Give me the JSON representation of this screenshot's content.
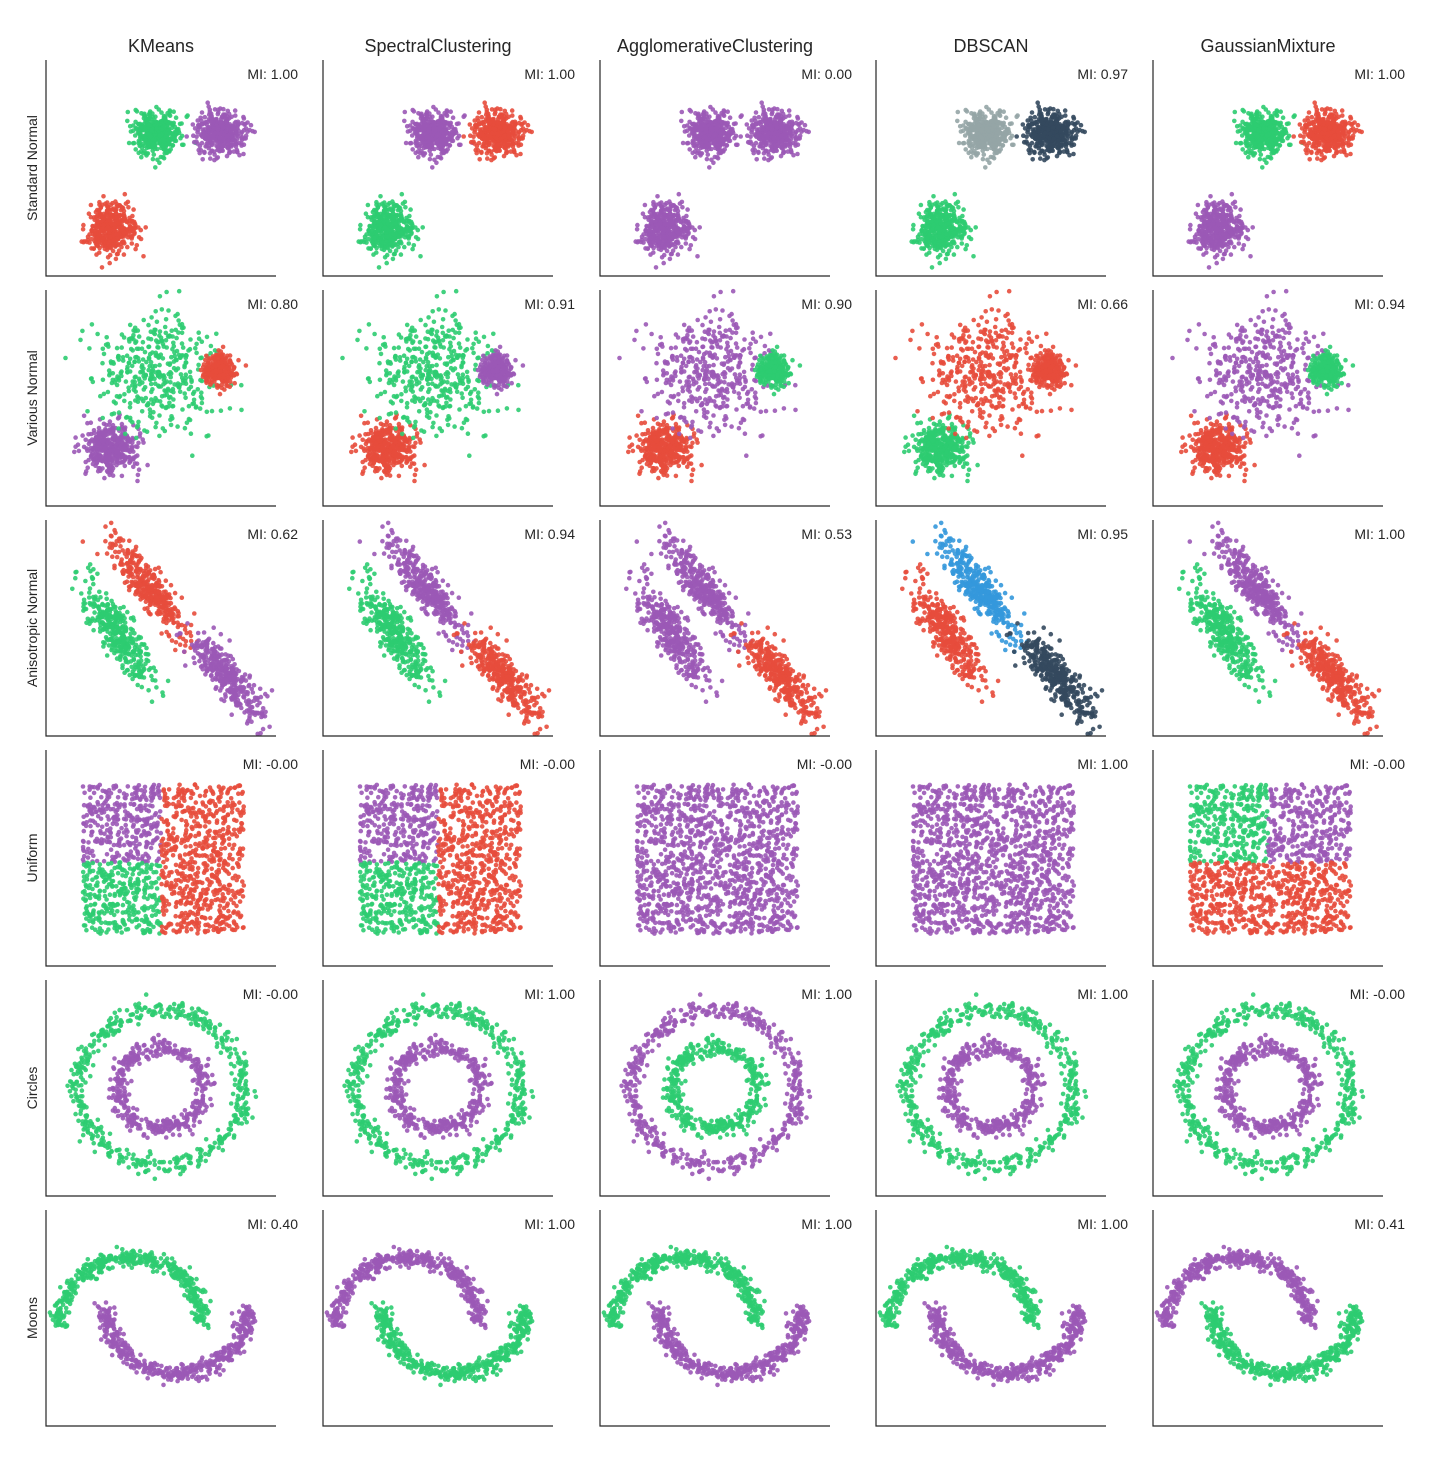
{
  "colors": {
    "purple": "#9b59b6",
    "red": "#e74c3c",
    "green": "#2ecc71",
    "gray": "#95a5a6",
    "navy": "#34495e",
    "blue": "#3498db"
  },
  "chart_data": {
    "type": "scatter",
    "grid": false,
    "columns": [
      "KMeans",
      "SpectralClustering",
      "AgglomerativeClustering",
      "DBSCAN",
      "GaussianMixture"
    ],
    "rows": [
      {
        "label": "Standard Normal",
        "dataset": "blobs",
        "clusters": [
          {
            "id": "A",
            "shape": "blob",
            "center": [
              0.28,
              0.22
            ],
            "spread": 0.055,
            "count": 420
          },
          {
            "id": "B",
            "shape": "blob",
            "center": [
              0.48,
              0.66
            ],
            "spread": 0.05,
            "count": 420
          },
          {
            "id": "C",
            "shape": "blob",
            "center": [
              0.76,
              0.66
            ],
            "spread": 0.05,
            "count": 420
          }
        ],
        "panels": [
          {
            "mi": "MI: 1.00",
            "colors": {
              "A": "red",
              "B": "green",
              "C": "purple"
            }
          },
          {
            "mi": "MI: 1.00",
            "colors": {
              "A": "green",
              "B": "purple",
              "C": "red"
            }
          },
          {
            "mi": "MI: 0.00",
            "colors": {
              "A": "purple",
              "B": "purple",
              "C": "purple"
            }
          },
          {
            "mi": "MI: 0.97",
            "colors": {
              "A": "green",
              "B": "gray",
              "C": "navy"
            }
          },
          {
            "mi": "MI: 1.00",
            "colors": {
              "A": "purple",
              "B": "green",
              "C": "red"
            }
          }
        ]
      },
      {
        "label": "Various Normal",
        "dataset": "varied",
        "clusters": [
          {
            "id": "A",
            "shape": "blob",
            "center": [
              0.28,
              0.27
            ],
            "spread": 0.055,
            "count": 420
          },
          {
            "id": "B",
            "shape": "blob",
            "center": [
              0.48,
              0.62
            ],
            "spread": 0.13,
            "count": 420
          },
          {
            "id": "C",
            "shape": "blob",
            "center": [
              0.75,
              0.63
            ],
            "spread": 0.035,
            "count": 300
          }
        ],
        "panels": [
          {
            "mi": "MI: 0.80",
            "colors": {
              "A": "purple",
              "B": "green",
              "C": "red"
            }
          },
          {
            "mi": "MI: 0.91",
            "colors": {
              "A": "red",
              "B": "green",
              "C": "purple"
            }
          },
          {
            "mi": "MI: 0.90",
            "colors": {
              "A": "red",
              "B": "purple",
              "C": "green"
            }
          },
          {
            "mi": "MI: 0.66",
            "colors": {
              "A": "green",
              "B": "red",
              "C": "red"
            }
          },
          {
            "mi": "MI: 0.94",
            "colors": {
              "A": "red",
              "B": "purple",
              "C": "green"
            }
          }
        ]
      },
      {
        "label": "Anisotropic Normal",
        "dataset": "aniso",
        "clusters": [
          {
            "id": "A",
            "shape": "bar",
            "from": [
              0.16,
              0.74
            ],
            "to": [
              0.47,
              0.2
            ],
            "width": 0.035,
            "count": 380
          },
          {
            "id": "B",
            "shape": "bar",
            "from": [
              0.27,
              0.94
            ],
            "to": [
              0.62,
              0.44
            ],
            "width": 0.035,
            "count": 380
          },
          {
            "id": "C",
            "shape": "bar",
            "from": [
              0.62,
              0.5
            ],
            "to": [
              0.95,
              0.06
            ],
            "width": 0.035,
            "count": 380
          }
        ],
        "panels": [
          {
            "mi": "MI: 0.62",
            "colors": {
              "A": "green",
              "B": "red",
              "C": "purple"
            }
          },
          {
            "mi": "MI: 0.94",
            "colors": {
              "A": "green",
              "B": "purple",
              "C": "red"
            }
          },
          {
            "mi": "MI: 0.53",
            "colors": {
              "A": "purple",
              "B": "purple",
              "C": "red"
            }
          },
          {
            "mi": "MI: 0.95",
            "colors": {
              "A": "red",
              "B": "blue",
              "C": "navy"
            }
          },
          {
            "mi": "MI: 1.00",
            "colors": {
              "A": "green",
              "B": "purple",
              "C": "red"
            }
          }
        ]
      },
      {
        "label": "Uniform",
        "dataset": "uniform",
        "clusters": [
          {
            "id": "TL",
            "shape": "rect",
            "x": [
              0.16,
              0.5
            ],
            "y": [
              0.48,
              0.84
            ],
            "count": 330
          },
          {
            "id": "TR",
            "shape": "rect",
            "x": [
              0.5,
              0.86
            ],
            "y": [
              0.48,
              0.84
            ],
            "count": 330
          },
          {
            "id": "BL",
            "shape": "rect",
            "x": [
              0.16,
              0.5
            ],
            "y": [
              0.15,
              0.48
            ],
            "count": 330
          },
          {
            "id": "BR",
            "shape": "rect",
            "x": [
              0.5,
              0.86
            ],
            "y": [
              0.15,
              0.48
            ],
            "count": 330
          }
        ],
        "panels": [
          {
            "mi": "MI: -0.00",
            "colors": {
              "TL": "purple",
              "TR": "red",
              "BL": "green",
              "BR": "red"
            }
          },
          {
            "mi": "MI: -0.00",
            "colors": {
              "TL": "purple",
              "TR": "red",
              "BL": "green",
              "BR": "red"
            }
          },
          {
            "mi": "MI: -0.00",
            "colors": {
              "TL": "purple",
              "TR": "purple",
              "BL": "purple",
              "BR": "purple"
            }
          },
          {
            "mi": "MI: 1.00",
            "colors": {
              "TL": "purple",
              "TR": "purple",
              "BL": "purple",
              "BR": "purple"
            }
          },
          {
            "mi": "MI: -0.00",
            "colors": {
              "TL": "green",
              "TR": "purple",
              "BL": "red",
              "BR": "red"
            }
          }
        ]
      },
      {
        "label": "Circles",
        "dataset": "circles",
        "clusters": [
          {
            "id": "outer",
            "shape": "ring",
            "center": [
              0.5,
              0.5
            ],
            "radius": 0.36,
            "noise": 0.022,
            "count": 520
          },
          {
            "id": "inner",
            "shape": "ring",
            "center": [
              0.5,
              0.5
            ],
            "radius": 0.19,
            "noise": 0.022,
            "count": 420
          }
        ],
        "panels": [
          {
            "mi": "MI: -0.00",
            "colors": {
              "outer": "green",
              "inner": "purple"
            }
          },
          {
            "mi": "MI: 1.00",
            "colors": {
              "outer": "green",
              "inner": "purple"
            }
          },
          {
            "mi": "MI: 1.00",
            "colors": {
              "outer": "purple",
              "inner": "green"
            }
          },
          {
            "mi": "MI: 1.00",
            "colors": {
              "outer": "green",
              "inner": "purple"
            }
          },
          {
            "mi": "MI: -0.00",
            "colors": {
              "outer": "green",
              "inner": "purple"
            }
          }
        ]
      },
      {
        "label": "Moons",
        "dataset": "moons",
        "clusters": [
          {
            "id": "upper",
            "shape": "arc",
            "center": [
              0.37,
              0.47
            ],
            "radius": 0.31,
            "from_deg": 0,
            "to_deg": 180,
            "noise": 0.02,
            "count": 460
          },
          {
            "id": "lower",
            "shape": "arc",
            "center": [
              0.57,
              0.55
            ],
            "radius": 0.31,
            "from_deg": 180,
            "to_deg": 360,
            "noise": 0.02,
            "count": 460
          }
        ],
        "panels": [
          {
            "mi": "MI: 0.40",
            "colors": {
              "upper": "green",
              "lower": "purple"
            }
          },
          {
            "mi": "MI: 1.00",
            "colors": {
              "upper": "purple",
              "lower": "green"
            }
          },
          {
            "mi": "MI: 1.00",
            "colors": {
              "upper": "green",
              "lower": "purple"
            }
          },
          {
            "mi": "MI: 1.00",
            "colors": {
              "upper": "green",
              "lower": "purple"
            }
          },
          {
            "mi": "MI: 0.41",
            "colors": {
              "upper": "purple",
              "lower": "green"
            }
          }
        ]
      }
    ]
  }
}
